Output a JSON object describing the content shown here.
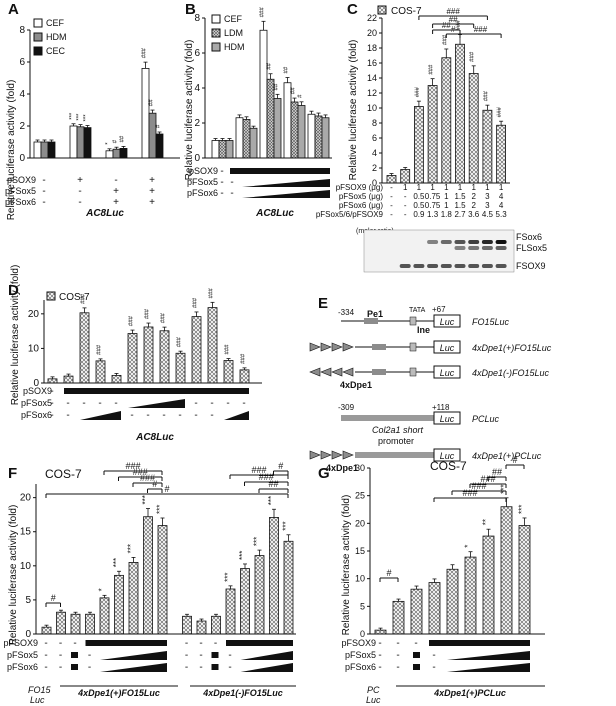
{
  "chart_data": [
    {
      "type": "bar",
      "panel": "A",
      "ylabel": "Relative luciferase activity (fold)",
      "ylim": [
        0,
        8
      ],
      "yticks": [
        0,
        2,
        4,
        6,
        8
      ],
      "legend": [
        "CEF",
        "HDM",
        "CEC"
      ],
      "groups": [
        {
          "values": [
            1,
            1,
            1
          ],
          "sig": [
            "",
            "",
            ""
          ]
        },
        {
          "values": [
            2.0,
            1.95,
            1.9
          ],
          "sig": [
            "***",
            "***",
            "***"
          ]
        },
        {
          "values": [
            0.45,
            0.55,
            0.6
          ],
          "sig": [
            "*",
            "#",
            "##"
          ]
        },
        {
          "values": [
            5.6,
            2.8,
            1.5
          ],
          "sig": [
            "###",
            "##",
            "#"
          ]
        }
      ],
      "conditions": [
        {
          "label": "pSOX9",
          "states": [
            "-",
            "+",
            "-",
            "+"
          ]
        },
        {
          "label": "pFSox5",
          "states": [
            "-",
            "-",
            "+",
            "+"
          ]
        },
        {
          "label": "pFSox6",
          "states": [
            "-",
            "-",
            "+",
            "+"
          ]
        }
      ],
      "reporter": "AC8Luc"
    },
    {
      "type": "bar",
      "panel": "B",
      "ylabel": "Relative luciferase activity (fold)",
      "ylim": [
        0,
        8
      ],
      "yticks": [
        0,
        2,
        4,
        6,
        8
      ],
      "legend": [
        "CEF",
        "LDM",
        "HDM"
      ],
      "groups": [
        {
          "values": [
            1,
            1,
            1
          ],
          "sig": [
            "",
            "",
            ""
          ]
        },
        {
          "values": [
            2.3,
            2.2,
            1.7
          ],
          "sig": [
            "",
            "",
            ""
          ]
        },
        {
          "values": [
            7.3,
            4.5,
            3.4
          ],
          "sig": [
            "###",
            "##",
            "##"
          ]
        },
        {
          "values": [
            4.3,
            3.2,
            3.0
          ],
          "sig": [
            "##",
            "##",
            "#"
          ]
        },
        {
          "values": [
            2.5,
            2.4,
            2.3
          ],
          "sig": [
            "",
            "",
            ""
          ]
        }
      ],
      "conditions": [
        {
          "label": "pSOX9",
          "states": [
            "-",
            "+",
            "+",
            "+",
            "+"
          ]
        },
        {
          "label": "pFSox5",
          "states": [
            "-",
            "-",
            "ramp",
            "ramp",
            "ramp"
          ]
        },
        {
          "label": "pFSox6",
          "states": [
            "-",
            "-",
            "ramp",
            "ramp",
            "ramp"
          ]
        }
      ],
      "reporter": "AC8Luc"
    },
    {
      "type": "bar",
      "panel": "C",
      "title": "COS-7",
      "ylabel": "Relative luciferase activity (fold)",
      "ylim": [
        0,
        22
      ],
      "yticks": [
        0,
        2,
        4,
        6,
        8,
        10,
        12,
        14,
        16,
        18,
        20,
        22
      ],
      "values": [
        1,
        1.8,
        10.2,
        13.0,
        16.7,
        18.5,
        14.6,
        9.7,
        7.7
      ],
      "sig": [
        "",
        "",
        "###",
        "###",
        "###",
        "###",
        "###",
        "###",
        "###"
      ],
      "rows": [
        {
          "label": "pFSOX9 (μg)",
          "cells": [
            "-",
            "1",
            "1",
            "1",
            "1",
            "1",
            "1",
            "1",
            "1"
          ]
        },
        {
          "label": "pFSox5 (μg)",
          "cells": [
            "-",
            "-",
            "0.5",
            "0.75",
            "1",
            "1.5",
            "2",
            "3",
            "4"
          ]
        },
        {
          "label": "pFSox6 (μg)",
          "cells": [
            "-",
            "-",
            "0.5",
            "0.75",
            "1",
            "1.5",
            "2",
            "3",
            "4"
          ]
        },
        {
          "label": "pFSox5/6/pFSOX9",
          "cells": [
            "-",
            "-",
            "0.9",
            "1.3",
            "1.8",
            "2.7",
            "3.6",
            "4.5",
            "5.3"
          ]
        }
      ],
      "molar_note": "(molar ratio)",
      "brackets": [
        "###",
        "##",
        "##",
        "#",
        "###"
      ],
      "blot_labels": [
        "FSox6",
        "FLSox5",
        "FSOX9"
      ]
    },
    {
      "type": "bar",
      "panel": "D",
      "title": "COS-7",
      "ylabel": "Relative luciferase activity (fold)",
      "ylim": [
        0,
        24
      ],
      "yticks": [
        0,
        10,
        20
      ],
      "values": [
        1.2,
        2.0,
        20.3,
        6.4,
        2.2,
        14.3,
        16.2,
        15.1,
        8.6,
        19.2,
        21.8,
        6.5,
        3.8
      ],
      "sig": [
        "",
        "",
        "###",
        "###",
        "",
        "###",
        "###",
        "###",
        "###",
        "###",
        "###",
        "###",
        "###"
      ],
      "conditions": [
        {
          "label": "pSOX9",
          "states": [
            "-",
            "+",
            "+",
            "+",
            "+",
            "+",
            "+",
            "+",
            "+",
            "+",
            "+",
            "+",
            "+"
          ]
        },
        {
          "label": "pFSox5",
          "states": [
            "-",
            "-",
            "-",
            "-",
            "-",
            "ramp",
            "ramp",
            "ramp",
            "ramp",
            "-",
            "-",
            "-",
            "-"
          ]
        },
        {
          "label": "pFSox6",
          "states": [
            "-",
            "-",
            "ramp",
            "ramp",
            "ramp",
            "-",
            "-",
            "-",
            "-",
            "-",
            "-",
            "ramp",
            "ramp"
          ]
        }
      ],
      "reporter": "AC8Luc"
    },
    {
      "type": "diagram",
      "panel": "E",
      "constructs": [
        "FO15Luc",
        "4xDpe1(+)FO15Luc",
        "4xDpe1(-)FO15Luc",
        "PCLuc",
        "4xDpe1(+)PCLuc"
      ],
      "labels": [
        "-334",
        "Pe1",
        "TATA",
        "+67",
        "Ine",
        "Luc",
        "4xDpe1",
        "-309",
        "+118",
        "Col2a1 short",
        "promoter"
      ]
    },
    {
      "type": "bar",
      "panel": "F",
      "title": "COS-7",
      "ylabel": "Relative luciferase activity (fold)",
      "ylim": [
        0,
        22
      ],
      "yticks": [
        0,
        5,
        10,
        15,
        20
      ],
      "values": [
        1.0,
        3.2,
        2.9,
        2.9,
        5.3,
        8.6,
        10.5,
        17.2,
        15.9,
        2.6,
        1.9,
        2.6,
        6.6,
        9.6,
        11.5,
        17.1,
        13.6
      ],
      "sig": [
        "",
        "",
        "",
        "",
        "*",
        "***",
        "***",
        "***",
        "***",
        "",
        "",
        "",
        "***",
        "***",
        "***",
        "***",
        "***"
      ],
      "groups": [
        "FO15 Luc",
        "4xDpe1(+)FO15Luc",
        "4xDpe1(-)FO15Luc"
      ],
      "brackets": [
        "#",
        "###",
        "###",
        "###",
        "#",
        "###",
        "###",
        "##",
        "#"
      ],
      "condition_labels": [
        "pFSOX9",
        "pFSox5",
        "pFSox6"
      ]
    },
    {
      "type": "bar",
      "panel": "G",
      "title": "COS-7",
      "ylabel": "Relative luciferase activity (fold)",
      "ylim": [
        0,
        30
      ],
      "yticks": [
        0,
        5,
        10,
        15,
        20,
        25,
        30
      ],
      "values": [
        0.7,
        5.9,
        8.1,
        9.3,
        11.7,
        13.9,
        17.7,
        23.0,
        19.6
      ],
      "sig": [
        "",
        "",
        "",
        "",
        "",
        "*",
        "**",
        "***",
        "***"
      ],
      "groups": [
        "PC Luc",
        "4xDpe1(+)PCLuc"
      ],
      "brackets": [
        "#",
        "###",
        "###",
        "##",
        "#"
      ],
      "condition_labels": [
        "pFSOX9",
        "pFSox5",
        "pFSox6"
      ]
    }
  ],
  "panel_letters": [
    "A",
    "B",
    "C",
    "D",
    "E",
    "F",
    "G"
  ],
  "texts": {
    "ylabel": "Relative luciferase activity (fold)",
    "cos7": "COS-7",
    "ac8luc": "AC8Luc",
    "fo15luc": "FO15Luc",
    "fo15luc_split": [
      "FO15",
      "Luc"
    ],
    "pc_split": [
      "PC",
      "Luc"
    ],
    "dpe_plus_fo15": "4xDpe1(+)FO15Luc",
    "dpe_minus_fo15": "4xDpe1(-)FO15Luc",
    "dpe_plus_pc": "4xDpe1(+)PCLuc",
    "pcluc": "PCLuc"
  },
  "colors": {
    "black": "#111111",
    "grey": "#8c8c8c",
    "white": "#ffffff"
  }
}
